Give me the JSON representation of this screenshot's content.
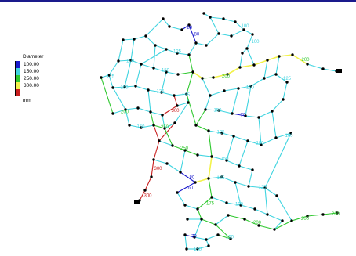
{
  "legend": {
    "title": "Diameter",
    "unit": "mm",
    "items": [
      {
        "label": "100.00",
        "color": "#1a1acc"
      },
      {
        "label": "150.00",
        "color": "#3fd4e0"
      },
      {
        "label": "250.00",
        "color": "#2ec82e"
      },
      {
        "label": "300.00",
        "color": "#f2f24a"
      },
      {
        "label": "",
        "color": "#c81e1e"
      }
    ]
  },
  "colors": {
    "top_bar": "#1a1a8c",
    "node": "#000000"
  },
  "pipe_labels": [
    {
      "text": "80",
      "color": "#1a1acc"
    },
    {
      "text": "100",
      "color": "#3fd4e0"
    },
    {
      "text": "150",
      "color": "#3fd4e0"
    },
    {
      "text": "125",
      "color": "#3fd4e0"
    },
    {
      "text": "200",
      "color": "#2ec82e"
    },
    {
      "text": "250",
      "color": "#2ec82e"
    },
    {
      "text": "300",
      "color": "#c81e1e"
    },
    {
      "text": "70",
      "color": "#1a1acc"
    },
    {
      "text": "175",
      "color": "#2ec82e"
    },
    {
      "text": "60",
      "color": "#1a1acc"
    }
  ]
}
